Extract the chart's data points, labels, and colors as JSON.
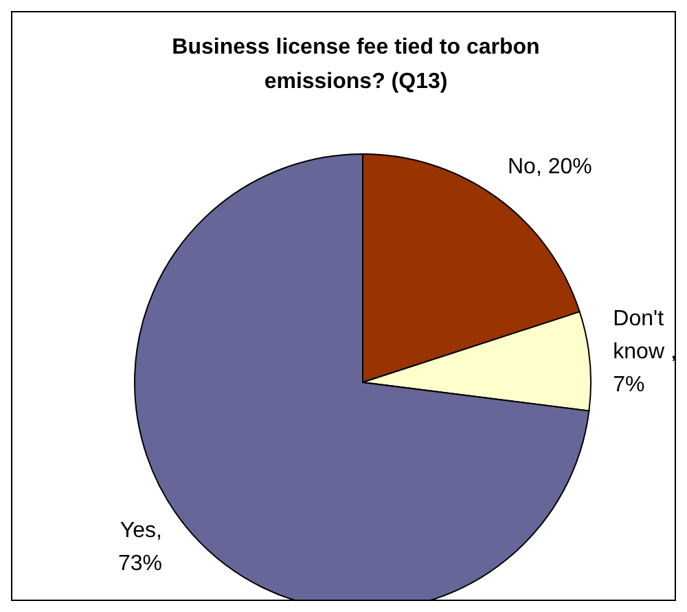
{
  "chart_data": {
    "type": "pie",
    "title": "Business license fee tied to carbon emissions? (Q13)",
    "categories": [
      "No",
      "Don't know ",
      "Yes"
    ],
    "values": [
      20,
      7,
      73
    ],
    "value_labels": [
      ", 20%",
      ", 7%",
      ", 73%"
    ],
    "colors": [
      "#993300",
      "#ffffcc",
      "#666699"
    ]
  }
}
